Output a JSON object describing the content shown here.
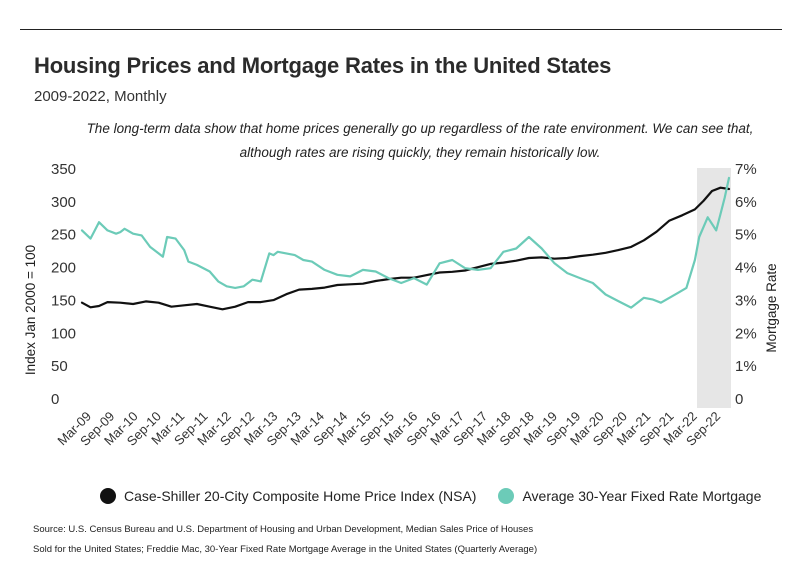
{
  "header": {
    "title": "Housing Prices and Mortgage Rates in the United States",
    "subtitle": "2009-2022, Monthly",
    "annotation_line1": "The long-term data show that home prices generally go up regardless of the rate environment. We can see that,",
    "annotation_line2": "although rates are rising quickly, they remain historically low."
  },
  "chart_data": {
    "type": "line",
    "left_axis": {
      "label": "Index Jan 2000 = 100",
      "ticks": [
        "350",
        "300",
        "250",
        "200",
        "150",
        "100",
        "50",
        "0"
      ],
      "range": [
        0,
        350
      ]
    },
    "right_axis": {
      "label": "Mortgage Rate",
      "ticks": [
        "7%",
        "6%",
        "5%",
        "4%",
        "3%",
        "2%",
        "1%",
        "0"
      ],
      "range": [
        0,
        7
      ]
    },
    "x_tick_labels": [
      "Mar-09",
      "Sep-09",
      "Mar-10",
      "Sep-10",
      "Mar-11",
      "Sep-11",
      "Mar-12",
      "Sep-12",
      "Mar-13",
      "Sep-13",
      "Mar-14",
      "Sep-14",
      "Mar-15",
      "Sep-15",
      "Mar-16",
      "Sep-16",
      "Mar-17",
      "Sep-17",
      "Mar-18",
      "Sep-18",
      "Mar-19",
      "Sep-19",
      "Mar-20",
      "Sep-20",
      "Mar-21",
      "Sep-21",
      "Mar-22",
      "Sep-22"
    ],
    "highlight_region": {
      "from": "Jan-22",
      "to": "Oct-22"
    },
    "series": [
      {
        "name": "Case-Shiller 20-City Composite Home Price Index (NSA)",
        "axis": "left",
        "color": "#111111",
        "points": [
          [
            0,
            145
          ],
          [
            2,
            138
          ],
          [
            4,
            140
          ],
          [
            6,
            146
          ],
          [
            9,
            145
          ],
          [
            12,
            143
          ],
          [
            15,
            147
          ],
          [
            18,
            145
          ],
          [
            21,
            139
          ],
          [
            24,
            141
          ],
          [
            27,
            143
          ],
          [
            30,
            139
          ],
          [
            33,
            135
          ],
          [
            36,
            139
          ],
          [
            39,
            146
          ],
          [
            42,
            146
          ],
          [
            45,
            149
          ],
          [
            48,
            158
          ],
          [
            51,
            165
          ],
          [
            54,
            166
          ],
          [
            57,
            168
          ],
          [
            60,
            172
          ],
          [
            63,
            173
          ],
          [
            66,
            174
          ],
          [
            69,
            178
          ],
          [
            72,
            181
          ],
          [
            75,
            183
          ],
          [
            78,
            183
          ],
          [
            81,
            187
          ],
          [
            84,
            191
          ],
          [
            87,
            192
          ],
          [
            90,
            194
          ],
          [
            93,
            199
          ],
          [
            96,
            204
          ],
          [
            99,
            206
          ],
          [
            102,
            209
          ],
          [
            105,
            213
          ],
          [
            108,
            214
          ],
          [
            111,
            212
          ],
          [
            114,
            213
          ],
          [
            117,
            216
          ],
          [
            120,
            218
          ],
          [
            123,
            221
          ],
          [
            126,
            225
          ],
          [
            129,
            230
          ],
          [
            132,
            240
          ],
          [
            135,
            253
          ],
          [
            138,
            270
          ],
          [
            141,
            278
          ],
          [
            144,
            287
          ],
          [
            146,
            300
          ],
          [
            148,
            315
          ],
          [
            150,
            320
          ],
          [
            152,
            318
          ]
        ]
      },
      {
        "name": "Average 30-Year Fixed Rate Mortgage",
        "axis": "right",
        "color": "#6ccbb8",
        "points": [
          [
            0,
            5.1
          ],
          [
            2,
            4.85
          ],
          [
            3,
            5.1
          ],
          [
            4,
            5.35
          ],
          [
            6,
            5.1
          ],
          [
            8,
            5.0
          ],
          [
            9,
            5.05
          ],
          [
            10,
            5.15
          ],
          [
            12,
            5.0
          ],
          [
            14,
            4.95
          ],
          [
            16,
            4.6
          ],
          [
            18,
            4.4
          ],
          [
            19,
            4.3
          ],
          [
            20,
            4.9
          ],
          [
            22,
            4.85
          ],
          [
            24,
            4.5
          ],
          [
            25,
            4.15
          ],
          [
            27,
            4.05
          ],
          [
            30,
            3.85
          ],
          [
            32,
            3.55
          ],
          [
            34,
            3.4
          ],
          [
            36,
            3.35
          ],
          [
            38,
            3.4
          ],
          [
            40,
            3.6
          ],
          [
            42,
            3.55
          ],
          [
            44,
            4.4
          ],
          [
            45,
            4.35
          ],
          [
            46,
            4.45
          ],
          [
            48,
            4.4
          ],
          [
            50,
            4.35
          ],
          [
            52,
            4.2
          ],
          [
            54,
            4.15
          ],
          [
            57,
            3.9
          ],
          [
            60,
            3.75
          ],
          [
            63,
            3.7
          ],
          [
            66,
            3.9
          ],
          [
            69,
            3.85
          ],
          [
            72,
            3.65
          ],
          [
            75,
            3.5
          ],
          [
            78,
            3.65
          ],
          [
            81,
            3.45
          ],
          [
            84,
            4.1
          ],
          [
            87,
            4.2
          ],
          [
            90,
            3.95
          ],
          [
            93,
            3.9
          ],
          [
            96,
            3.95
          ],
          [
            99,
            4.45
          ],
          [
            102,
            4.55
          ],
          [
            105,
            4.9
          ],
          [
            108,
            4.55
          ],
          [
            111,
            4.1
          ],
          [
            114,
            3.8
          ],
          [
            117,
            3.65
          ],
          [
            120,
            3.5
          ],
          [
            123,
            3.15
          ],
          [
            126,
            2.95
          ],
          [
            129,
            2.75
          ],
          [
            132,
            3.05
          ],
          [
            134,
            3.0
          ],
          [
            136,
            2.9
          ],
          [
            138,
            3.05
          ],
          [
            140,
            3.2
          ],
          [
            142,
            3.35
          ],
          [
            144,
            4.2
          ],
          [
            145,
            4.9
          ],
          [
            146,
            5.2
          ],
          [
            147,
            5.5
          ],
          [
            148,
            5.3
          ],
          [
            149,
            5.1
          ],
          [
            150,
            5.6
          ],
          [
            151,
            6.1
          ],
          [
            152,
            6.7
          ]
        ]
      }
    ]
  },
  "legend": {
    "item1": "Case-Shiller 20-City Composite Home Price Index (NSA)",
    "item2": "Average 30-Year Fixed Rate Mortgage"
  },
  "colors": {
    "home_price": "#111111",
    "mortgage": "#6ccbb8",
    "highlight": "#e6e6e6"
  },
  "footer": {
    "source_line1": "Source:   U.S. Census Bureau and U.S. Department of Housing and Urban Development, Median Sales Price of Houses",
    "source_line2": "Sold for the United States; Freddie Mac, 30-Year Fixed Rate Mortgage Average in the United States (Quarterly Average)"
  }
}
